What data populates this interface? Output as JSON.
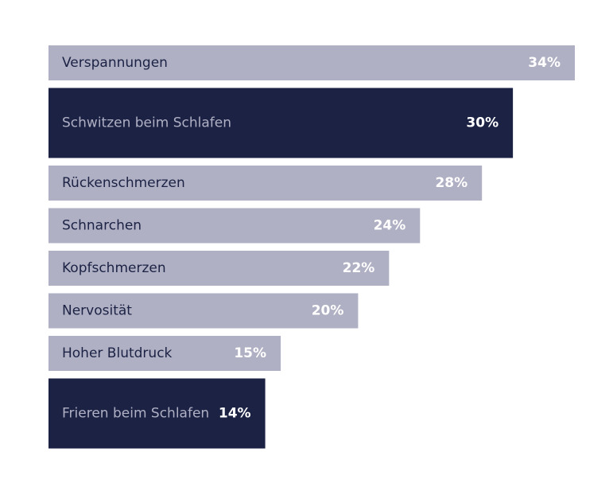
{
  "chart_data": {
    "type": "hbar",
    "categories": [
      "Verspannungen",
      "Schwitzen beim Schlafen",
      "Rückenschmerzen",
      "Schnarchen",
      "Kopfschmerzen",
      "Nervosität",
      "Hoher Blutdruck",
      "Frieren beim Schlafen"
    ],
    "values": [
      34,
      30,
      28,
      24,
      22,
      20,
      15,
      14
    ],
    "value_labels": [
      "34%",
      "30%",
      "28%",
      "24%",
      "22%",
      "20%",
      "15%",
      "14%"
    ],
    "color": "#b0b0c4",
    "highlight_color": "#1b2244",
    "highlight": [
      false,
      true,
      false,
      false,
      false,
      false,
      false,
      true
    ]
  }
}
